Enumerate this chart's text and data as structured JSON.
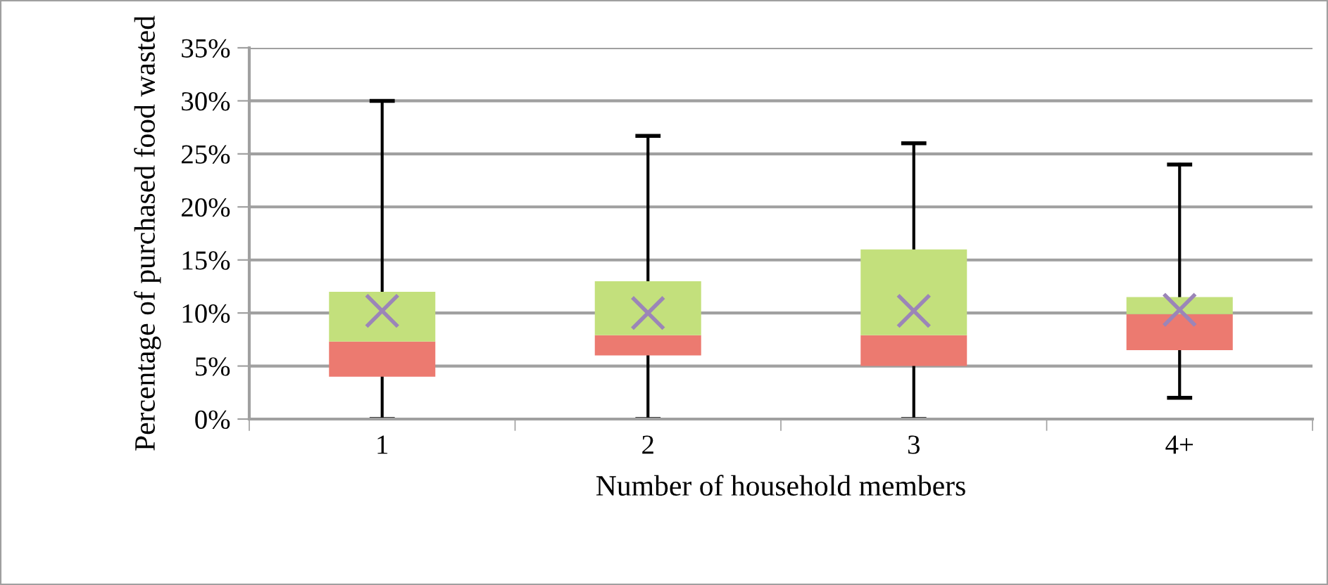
{
  "chart_data": {
    "type": "box",
    "xlabel": "Number of household members",
    "ylabel": "Percentage of purchased food wasted",
    "categories": [
      "1",
      "2",
      "3",
      "4+"
    ],
    "boxes": [
      {
        "low": 0,
        "q1": 4,
        "median": 7.3,
        "q3": 12,
        "high": 30,
        "mean": 10.2
      },
      {
        "low": 0,
        "q1": 6,
        "median": 7.9,
        "q3": 13,
        "high": 26.7,
        "mean": 10
      },
      {
        "low": 0,
        "q1": 5,
        "median": 7.9,
        "q3": 16,
        "high": 26,
        "mean": 10.2
      },
      {
        "low": 2,
        "q1": 6.5,
        "median": 9.9,
        "q3": 11.5,
        "high": 24,
        "mean": 10.3
      }
    ],
    "color": "#c3e07c",
    "colors": [
      "#ec7a70",
      "#ec7a70",
      "#ec7a70",
      "#ec7a70"
    ],
    "marker": "cross",
    "ylim": [
      0,
      35
    ],
    "yticks": [
      {
        "value": 0,
        "label": "0%"
      },
      {
        "value": 5,
        "label": "5%"
      },
      {
        "value": 10,
        "label": "10%"
      },
      {
        "value": 15,
        "label": "15%"
      },
      {
        "value": 20,
        "label": "20%"
      },
      {
        "value": 25,
        "label": "25%"
      },
      {
        "value": 30,
        "label": "30%"
      },
      {
        "value": 35,
        "label": "35%"
      }
    ],
    "grid": "y"
  }
}
